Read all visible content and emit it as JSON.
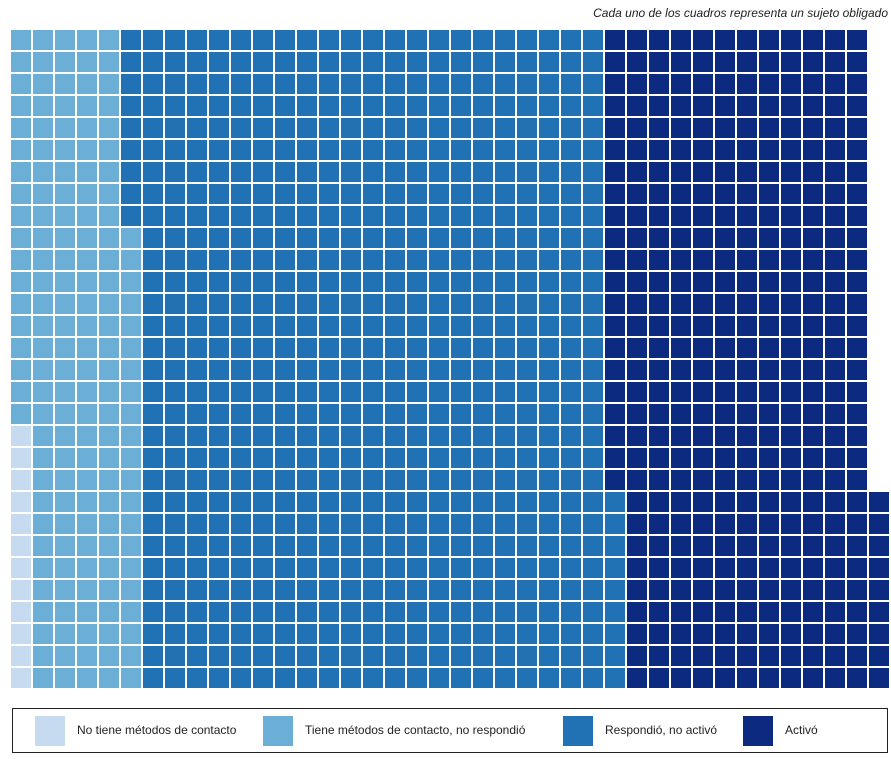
{
  "chart_data": {
    "type": "waffle",
    "subtitle": "Cada uno de los cuadros representa un sujeto obligado",
    "series": [
      {
        "name": "No tiene métodos de contacto",
        "color": "#c6dbef",
        "values": [
          12
        ]
      },
      {
        "name": "Tiene métodos de contacto, no respondió",
        "color": "#6baed6",
        "values": [
          159
        ]
      },
      {
        "name": "Respondió, no activó",
        "color": "#2171b5",
        "values": [
          648
        ]
      },
      {
        "name": "Activó",
        "color": "#0c2a80",
        "values": [
          360
        ]
      }
    ],
    "legend": "bottom"
  }
}
